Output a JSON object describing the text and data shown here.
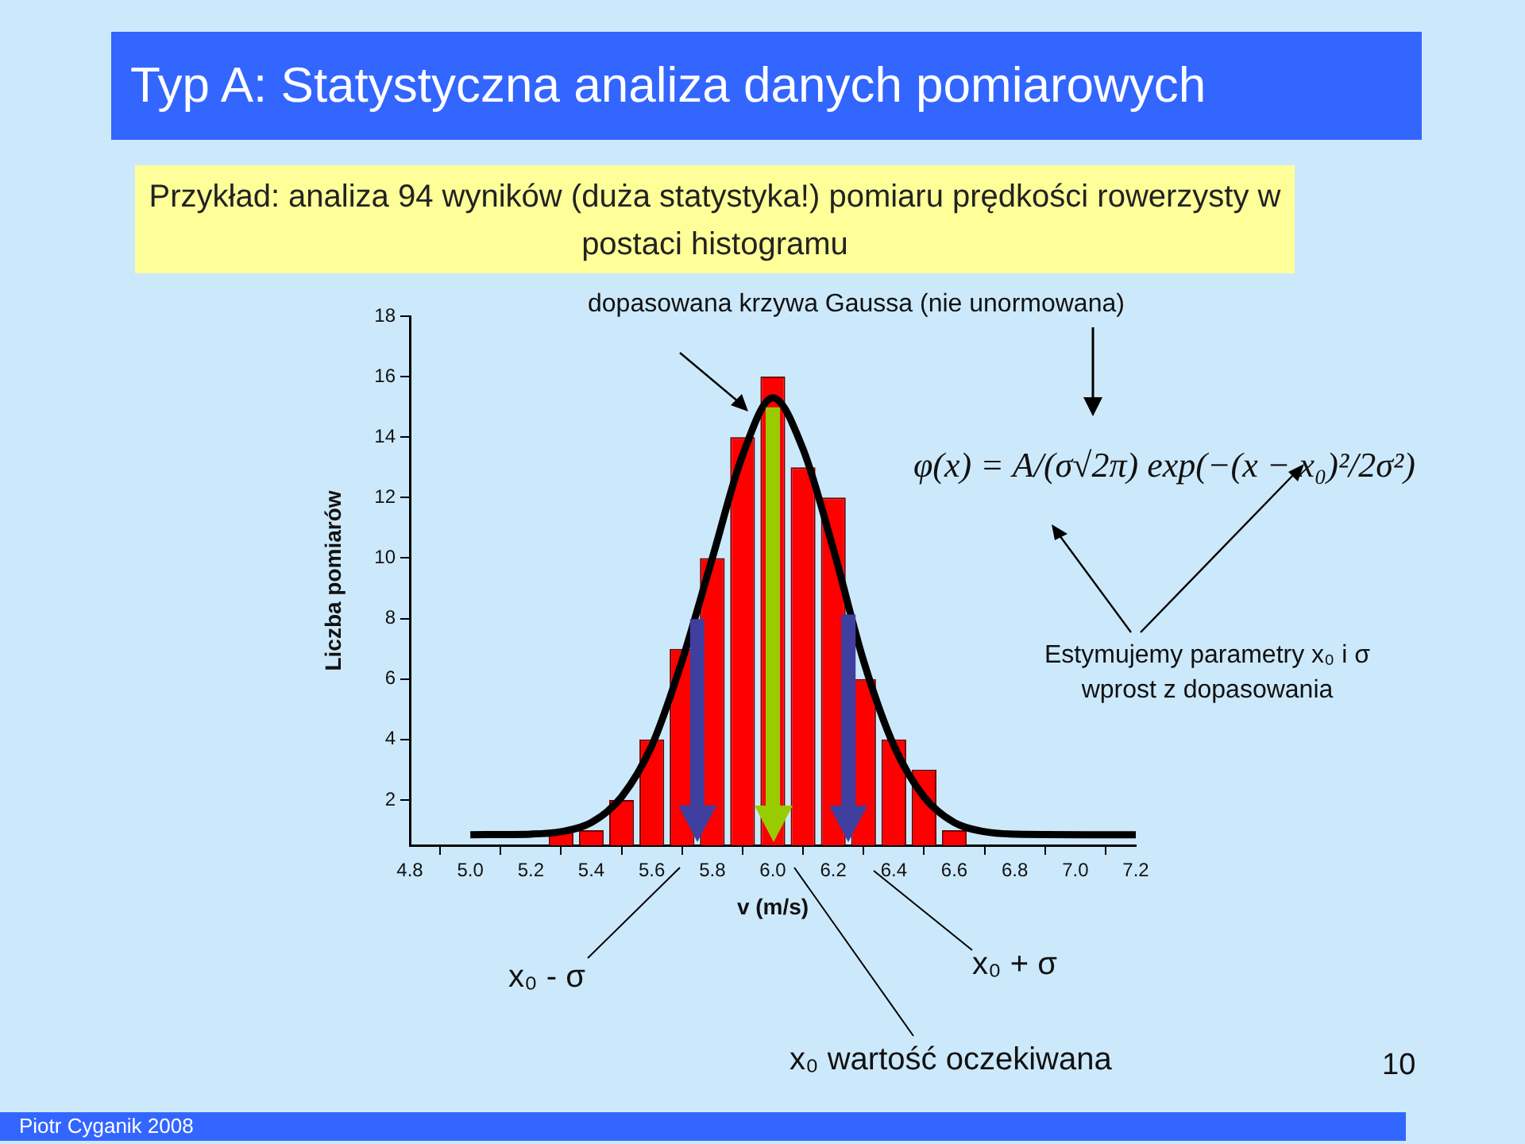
{
  "chart_data": {
    "type": "histogram",
    "title": "Typ A: Statystyczna analiza danych pomiarowych",
    "subtitle": "Przykład: analiza 94 wyników (duża statystyka!) pomiaru prędkości rowerzysty w postaci histogramu",
    "xlabel": "v (m/s)",
    "ylabel": "Liczba pomiarów",
    "bins": [
      5.25,
      5.35,
      5.45,
      5.55,
      5.65,
      5.75,
      5.85,
      5.95,
      6.05,
      6.15,
      6.25,
      6.35,
      6.45,
      6.55,
      6.65
    ],
    "values": [
      1,
      1,
      2,
      4,
      7,
      10,
      14,
      16,
      13,
      12,
      6,
      4,
      3,
      1
    ],
    "color": "#ff0000",
    "series": [
      {
        "type": "line",
        "color": "#000000",
        "x": [
          5.0,
          5.2,
          5.3,
          5.4,
          5.5,
          5.6,
          5.7,
          5.8,
          5.9,
          6.0,
          6.1,
          6.2,
          6.3,
          6.4,
          6.5,
          6.6,
          6.7,
          6.8,
          7.2
        ],
        "values": [
          0.85,
          0.87,
          0.95,
          1.25,
          2.1,
          3.8,
          6.6,
          10.0,
          13.4,
          15.3,
          13.6,
          10.3,
          6.6,
          3.8,
          2.1,
          1.25,
          0.95,
          0.87,
          0.85
        ]
      }
    ],
    "xlim": [
      4.8,
      7.2
    ],
    "xticks": [
      4.8,
      {
        "value": 5.0,
        "label": "5.0"
      },
      5.2,
      5.4,
      5.6,
      5.8,
      {
        "value": 6.0,
        "label": "6.0"
      },
      6.2,
      6.4,
      6.6,
      6.8,
      {
        "value": 7.0,
        "label": "7.0"
      },
      7.2
    ],
    "ylim": [
      0.5,
      18
    ],
    "yticks": [
      2,
      4,
      6,
      8,
      10,
      12,
      14,
      16,
      18
    ],
    "grid": false,
    "ref_lines": [
      {
        "axis": "x",
        "value": 5.75,
        "color": "#3f3f9f"
      },
      {
        "axis": "x",
        "value": 6.0,
        "color": "#99cc00"
      },
      {
        "axis": "x",
        "value": 6.25,
        "color": "#3f3f9f"
      }
    ],
    "annotations": [
      "dopasowana krzywa Gaussa (nie unormowana)",
      "φ(x) = A/(σ√2π) exp(−(x − x₀)²/2σ²)",
      "Estymujemy parametry x₀ i σ wprost z dopasowania",
      "Piotr Cyganik 2008",
      "10",
      "x₀ - σ",
      "x₀ wartość oczekiwana",
      "x₀ + σ"
    ]
  }
}
